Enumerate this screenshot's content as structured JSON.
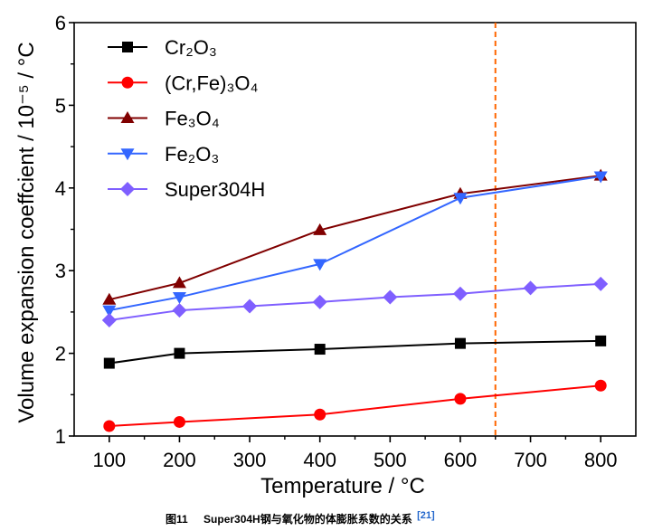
{
  "chart_data": {
    "type": "line",
    "title": "",
    "xlabel": "Temperature / °C",
    "ylabel": "Volume expansion coeffcient / 10⁻⁵ / °C",
    "xlim": [
      50,
      850
    ],
    "ylim": [
      1,
      6
    ],
    "xticks": [
      100,
      200,
      300,
      400,
      500,
      600,
      700,
      800
    ],
    "yticks": [
      1,
      2,
      3,
      4,
      5,
      6
    ],
    "grid": false,
    "legend": "top-left",
    "reference_line": {
      "x": 650,
      "color": "#ff6600"
    },
    "series": [
      {
        "name": "Cr₂O₃",
        "marker": "square",
        "color": "#000000",
        "x": [
          100,
          200,
          400,
          600,
          800
        ],
        "y": [
          1.88,
          2.0,
          2.05,
          2.12,
          2.15
        ]
      },
      {
        "name": "(Cr,Fe)₃O₄",
        "marker": "circle",
        "color": "#ff0000",
        "x": [
          100,
          200,
          400,
          600,
          800
        ],
        "y": [
          1.12,
          1.17,
          1.26,
          1.45,
          1.61
        ]
      },
      {
        "name": "Fe₃O₄",
        "marker": "triangle-up",
        "color": "#800000",
        "x": [
          100,
          200,
          400,
          600,
          800
        ],
        "y": [
          2.65,
          2.85,
          3.49,
          3.93,
          4.15
        ]
      },
      {
        "name": "Fe₂O₃",
        "marker": "triangle-down",
        "color": "#3366ff",
        "x": [
          100,
          200,
          400,
          600,
          800
        ],
        "y": [
          2.52,
          2.68,
          3.08,
          3.88,
          4.14
        ]
      },
      {
        "name": "Super304H",
        "marker": "diamond",
        "color": "#7f5fff",
        "x": [
          100,
          200,
          300,
          400,
          500,
          600,
          700,
          800
        ],
        "y": [
          2.4,
          2.52,
          2.57,
          2.62,
          2.68,
          2.72,
          2.79,
          2.84
        ]
      }
    ]
  },
  "caption": {
    "figure_label": "图11",
    "title": "Super304H钢与氧化物的体膨胀系数的关系",
    "reference": "[21]",
    "reference_color": "#2266cc"
  }
}
